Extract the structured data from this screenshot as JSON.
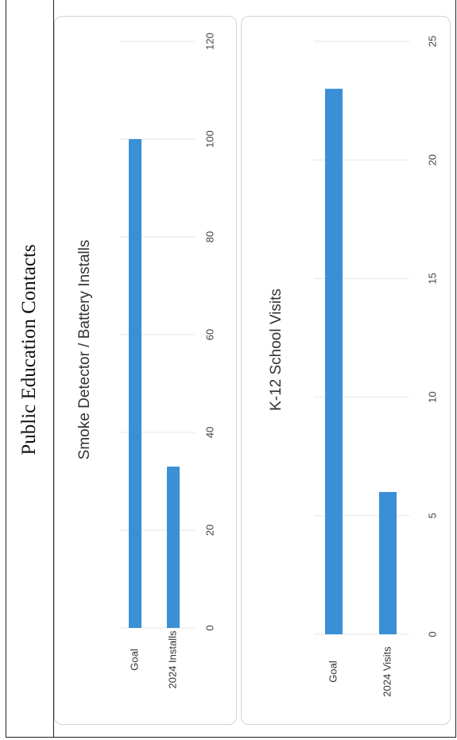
{
  "page_title": "Public Education Contacts",
  "chart_data": [
    {
      "type": "bar",
      "orientation": "horizontal",
      "title": "Smoke Detector / Battery Installs",
      "categories": [
        "Goal",
        "2024 Installs"
      ],
      "values": [
        100,
        33
      ],
      "xlim": [
        0,
        120
      ],
      "ticks": [
        0,
        20,
        40,
        60,
        80,
        100,
        120
      ],
      "grid": true,
      "bar_color": "#3a8fd6"
    },
    {
      "type": "bar",
      "orientation": "horizontal",
      "title": "K-12 School Visits",
      "categories": [
        "Goal",
        "2024 Visits"
      ],
      "values": [
        23,
        6
      ],
      "xlim": [
        0,
        25
      ],
      "ticks": [
        0,
        5,
        10,
        15,
        20,
        25
      ],
      "grid": true,
      "bar_color": "#3a8fd6"
    }
  ]
}
